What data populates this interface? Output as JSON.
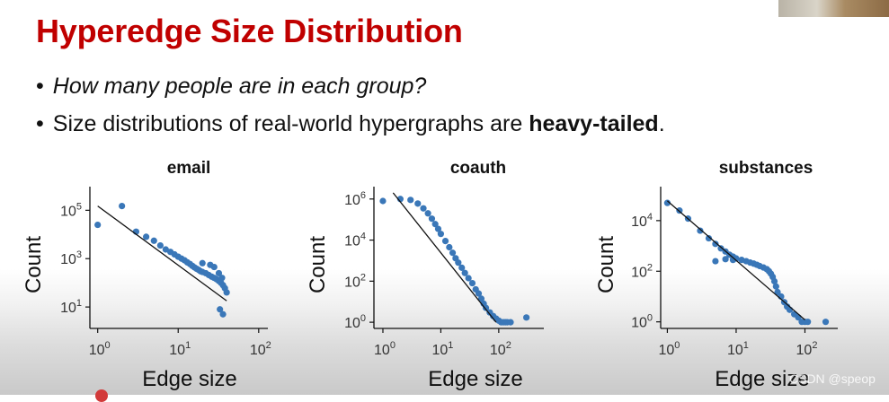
{
  "slide": {
    "title": "Hyperedge Size Distribution",
    "bullets": [
      {
        "text": "How many people are in each group?"
      },
      {
        "before": "Size distributions of real-world hypergraphs are ",
        "bold": "heavy-tailed",
        "after": "."
      }
    ],
    "watermark": "CSDN @speop"
  },
  "chart_data": [
    {
      "type": "scatter",
      "title": "email",
      "xlabel": "Edge size",
      "ylabel": "Count",
      "x_scale": "log",
      "y_scale": "log",
      "xlim": [
        0.8,
        130
      ],
      "ylim": [
        1.3,
        950000
      ],
      "xticks": [
        1,
        10,
        100
      ],
      "xtick_labels": [
        "10^0",
        "10^1",
        "10^2"
      ],
      "yticks": [
        10,
        1000,
        100000
      ],
      "ytick_labels": [
        "10^1",
        "10^3",
        "10^5"
      ],
      "color": "#3a77b8",
      "points": [
        [
          1,
          25000
        ],
        [
          2,
          150000
        ],
        [
          3,
          13000
        ],
        [
          4,
          8000
        ],
        [
          5,
          5500
        ],
        [
          6,
          3500
        ],
        [
          7,
          2400
        ],
        [
          8,
          1900
        ],
        [
          9,
          1500
        ],
        [
          10,
          1200
        ],
        [
          11,
          1000
        ],
        [
          12,
          850
        ],
        [
          13,
          700
        ],
        [
          14,
          600
        ],
        [
          15,
          500
        ],
        [
          16,
          430
        ],
        [
          17,
          380
        ],
        [
          18,
          340
        ],
        [
          19,
          300
        ],
        [
          20,
          280
        ],
        [
          22,
          250
        ],
        [
          24,
          210
        ],
        [
          26,
          180
        ],
        [
          28,
          160
        ],
        [
          30,
          140
        ],
        [
          32,
          120
        ],
        [
          34,
          100
        ],
        [
          36,
          80
        ],
        [
          38,
          60
        ],
        [
          40,
          40
        ],
        [
          20,
          650
        ],
        [
          25,
          550
        ],
        [
          28,
          450
        ],
        [
          32,
          250
        ],
        [
          35,
          160
        ],
        [
          33,
          8
        ],
        [
          36,
          5
        ]
      ],
      "fit": [
        [
          1,
          150000
        ],
        [
          40,
          18
        ]
      ]
    },
    {
      "type": "scatter",
      "title": "coauth",
      "xlabel": "Edge size",
      "ylabel": "Count",
      "x_scale": "log",
      "y_scale": "log",
      "xlim": [
        0.7,
        600
      ],
      "ylim": [
        0.5,
        4000000
      ],
      "xticks": [
        1,
        10,
        100
      ],
      "xtick_labels": [
        "10^0",
        "10^1",
        "10^2"
      ],
      "yticks": [
        1,
        100,
        10000,
        1000000
      ],
      "ytick_labels": [
        "10^0",
        "10^2",
        "10^4",
        "10^6"
      ],
      "color": "#3a77b8",
      "points": [
        [
          1,
          800000
        ],
        [
          2,
          1000000
        ],
        [
          3,
          900000
        ],
        [
          4,
          600000
        ],
        [
          5,
          350000
        ],
        [
          6,
          200000
        ],
        [
          7,
          110000
        ],
        [
          8,
          60000
        ],
        [
          9,
          35000
        ],
        [
          10,
          20000
        ],
        [
          12,
          9000
        ],
        [
          14,
          4500
        ],
        [
          16,
          2400
        ],
        [
          18,
          1300
        ],
        [
          20,
          800
        ],
        [
          23,
          450
        ],
        [
          26,
          250
        ],
        [
          30,
          140
        ],
        [
          35,
          80
        ],
        [
          40,
          40
        ],
        [
          45,
          25
        ],
        [
          50,
          14
        ],
        [
          55,
          8
        ],
        [
          60,
          5
        ],
        [
          70,
          3
        ],
        [
          80,
          2
        ],
        [
          90,
          1.5
        ],
        [
          100,
          1.2
        ],
        [
          110,
          1
        ],
        [
          120,
          1
        ],
        [
          130,
          1
        ],
        [
          140,
          1
        ],
        [
          160,
          1
        ],
        [
          300,
          1.7
        ]
      ],
      "fit": [
        [
          1.5,
          2000000
        ],
        [
          90,
          1
        ]
      ]
    },
    {
      "type": "scatter",
      "title": "substances",
      "xlabel": "Edge size",
      "ylabel": "Count",
      "x_scale": "log",
      "y_scale": "log",
      "xlim": [
        0.8,
        300
      ],
      "ylim": [
        0.55,
        220000
      ],
      "xticks": [
        1,
        10,
        100
      ],
      "xtick_labels": [
        "10^0",
        "10^1",
        "10^2"
      ],
      "yticks": [
        1,
        100,
        10000
      ],
      "ytick_labels": [
        "10^0",
        "10^2",
        "10^4"
      ],
      "color": "#3a77b8",
      "points": [
        [
          1,
          50000
        ],
        [
          1.5,
          25000
        ],
        [
          2,
          12000
        ],
        [
          3,
          4000
        ],
        [
          4,
          2000
        ],
        [
          5,
          1200
        ],
        [
          6,
          800
        ],
        [
          7,
          600
        ],
        [
          8,
          450
        ],
        [
          9,
          380
        ],
        [
          10,
          320
        ],
        [
          12,
          280
        ],
        [
          14,
          250
        ],
        [
          16,
          220
        ],
        [
          18,
          200
        ],
        [
          20,
          180
        ],
        [
          22,
          160
        ],
        [
          25,
          140
        ],
        [
          28,
          120
        ],
        [
          30,
          100
        ],
        [
          32,
          80
        ],
        [
          34,
          60
        ],
        [
          36,
          40
        ],
        [
          38,
          25
        ],
        [
          40,
          15
        ],
        [
          45,
          10
        ],
        [
          50,
          6
        ],
        [
          55,
          4
        ],
        [
          60,
          3
        ],
        [
          70,
          2
        ],
        [
          80,
          1.5
        ],
        [
          90,
          1
        ],
        [
          100,
          1
        ],
        [
          110,
          1
        ],
        [
          200,
          1
        ],
        [
          5,
          250
        ],
        [
          7,
          300
        ],
        [
          9,
          280
        ]
      ],
      "fit": [
        [
          1,
          60000
        ],
        [
          100,
          1.2
        ]
      ]
    }
  ]
}
